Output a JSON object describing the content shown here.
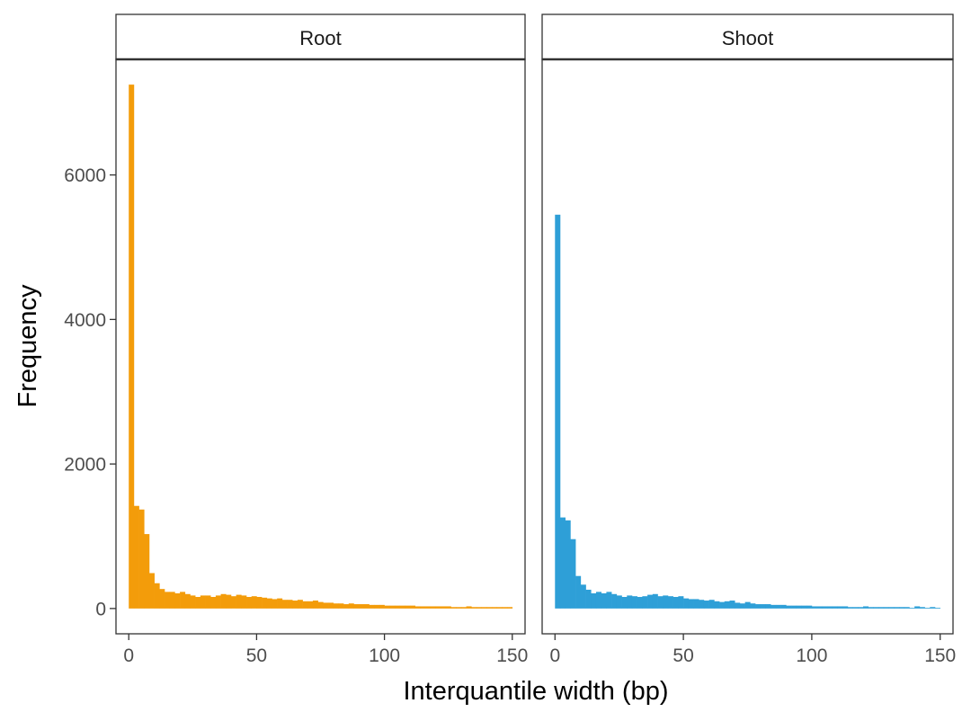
{
  "chart_data": {
    "type": "bar",
    "subtype": "histogram",
    "xlabel": "Interquantile width (bp)",
    "ylabel": "Frequency",
    "xlim": [
      -5,
      155
    ],
    "ylim": [
      -350,
      7600
    ],
    "x_ticks": [
      0,
      50,
      100,
      150
    ],
    "y_ticks": [
      0,
      2000,
      4000,
      6000
    ],
    "bin_width": 2,
    "bin_starts": [
      0,
      2,
      4,
      6,
      8,
      10,
      12,
      14,
      16,
      18,
      20,
      22,
      24,
      26,
      28,
      30,
      32,
      34,
      36,
      38,
      40,
      42,
      44,
      46,
      48,
      50,
      52,
      54,
      56,
      58,
      60,
      62,
      64,
      66,
      68,
      70,
      72,
      74,
      76,
      78,
      80,
      82,
      84,
      86,
      88,
      90,
      92,
      94,
      96,
      98,
      100,
      102,
      104,
      106,
      108,
      110,
      112,
      114,
      116,
      118,
      120,
      122,
      124,
      126,
      128,
      130,
      132,
      134,
      136,
      138,
      140,
      142,
      144,
      146,
      148
    ],
    "grid": false,
    "legend": "none",
    "panels": [
      {
        "name": "Root",
        "color": "#F39C0A",
        "values": [
          7250,
          1420,
          1370,
          1030,
          490,
          350,
          270,
          230,
          230,
          210,
          230,
          200,
          180,
          160,
          180,
          180,
          160,
          180,
          200,
          190,
          170,
          190,
          180,
          160,
          170,
          160,
          150,
          140,
          130,
          140,
          120,
          120,
          110,
          120,
          100,
          100,
          110,
          90,
          80,
          80,
          70,
          70,
          60,
          70,
          60,
          60,
          60,
          50,
          50,
          50,
          40,
          40,
          40,
          40,
          40,
          40,
          30,
          30,
          30,
          30,
          30,
          30,
          30,
          20,
          20,
          20,
          30,
          20,
          20,
          20,
          20,
          20,
          20,
          20,
          20
        ]
      },
      {
        "name": "Shoot",
        "color": "#2E9FD7",
        "values": [
          5450,
          1260,
          1220,
          960,
          450,
          330,
          260,
          210,
          230,
          210,
          230,
          200,
          180,
          160,
          180,
          170,
          160,
          170,
          190,
          200,
          170,
          180,
          170,
          160,
          170,
          140,
          130,
          130,
          120,
          110,
          120,
          100,
          90,
          100,
          110,
          80,
          70,
          90,
          70,
          60,
          60,
          60,
          50,
          50,
          50,
          40,
          40,
          40,
          40,
          40,
          30,
          30,
          30,
          30,
          30,
          30,
          30,
          20,
          20,
          20,
          30,
          20,
          20,
          20,
          20,
          20,
          20,
          20,
          20,
          10,
          30,
          20,
          10,
          20,
          10
        ]
      }
    ]
  }
}
